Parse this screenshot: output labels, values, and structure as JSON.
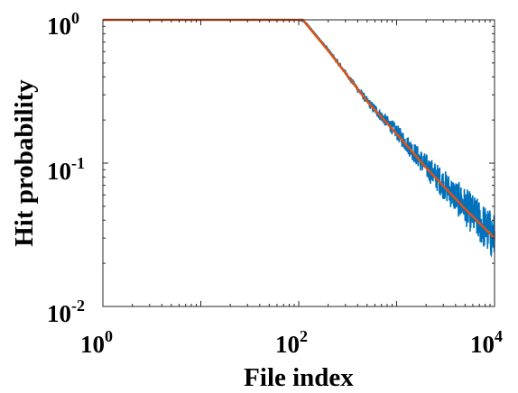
{
  "chart_data": {
    "type": "line",
    "title": "",
    "xlabel": "File index",
    "ylabel": "Hit probability",
    "xscale": "log",
    "yscale": "log",
    "xlim": [
      1,
      10000
    ],
    "ylim": [
      0.01,
      1
    ],
    "grid": false,
    "legend": "none",
    "x_ticks": [
      {
        "base": "10",
        "exp": "0"
      },
      {
        "base": "10",
        "exp": "2"
      },
      {
        "base": "10",
        "exp": "4"
      }
    ],
    "y_ticks": [
      {
        "base": "10",
        "exp": "-2"
      },
      {
        "base": "10",
        "exp": "-1"
      },
      {
        "base": "10",
        "exp": "0"
      }
    ],
    "series": [
      {
        "color": "#0072BD",
        "style": "noisy",
        "x": [
          1,
          100,
          120,
          200,
          500,
          1000,
          2000,
          5000,
          10000
        ],
        "y": [
          1,
          1,
          0.95,
          0.62,
          0.27,
          0.165,
          0.095,
          0.05,
          0.03
        ]
      },
      {
        "color": "#D95319",
        "style": "smooth",
        "x": [
          1,
          110,
          200,
          500,
          1000,
          2000,
          5000,
          10000
        ],
        "y": [
          1,
          1,
          0.61,
          0.27,
          0.16,
          0.093,
          0.048,
          0.03
        ]
      }
    ]
  }
}
